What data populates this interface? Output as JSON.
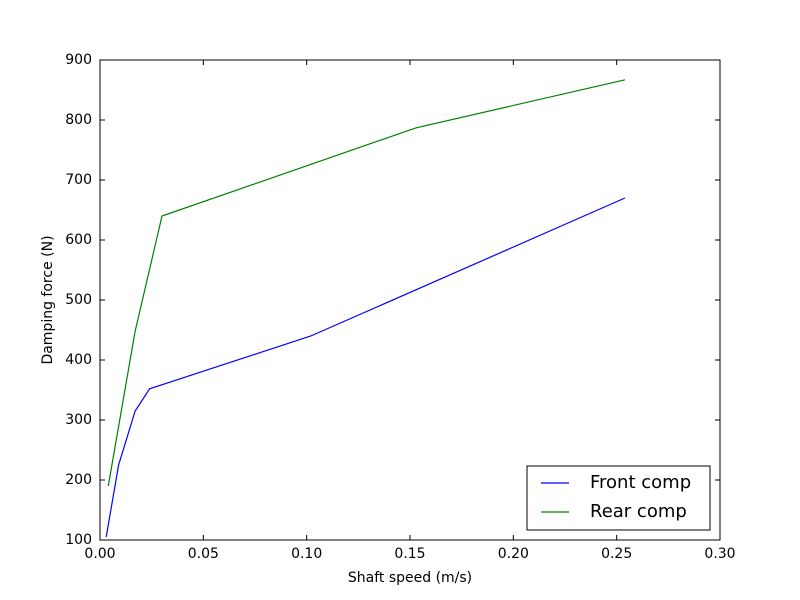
{
  "chart_data": {
    "type": "line",
    "xlabel": "Shaft speed (m/s)",
    "ylabel": "Damping force (N)",
    "series": [
      {
        "name": "Front comp",
        "color": "#0000ff",
        "x": [
          0.003,
          0.009,
          0.017,
          0.024,
          0.102,
          0.254
        ],
        "values": [
          105,
          225,
          315,
          352,
          440,
          670
        ]
      },
      {
        "name": "Rear comp",
        "color": "#008000",
        "x": [
          0.004,
          0.017,
          0.03,
          0.153,
          0.254
        ],
        "values": [
          190,
          448,
          640,
          787,
          867
        ]
      }
    ],
    "xlim": [
      0,
      0.3
    ],
    "xticks": [
      {
        "value": 0,
        "label": "0.00"
      },
      {
        "value": 0.05,
        "label": "0.05"
      },
      {
        "value": 0.1,
        "label": "0.10"
      },
      {
        "value": 0.15,
        "label": "0.15"
      },
      {
        "value": 0.2,
        "label": "0.20"
      },
      {
        "value": 0.25,
        "label": "0.25"
      },
      {
        "value": 0.3,
        "label": "0.30"
      }
    ],
    "ylim": [
      100,
      900
    ],
    "yticks": [
      100,
      200,
      300,
      400,
      500,
      600,
      700,
      800,
      900
    ],
    "grid": false,
    "legend": "lower right"
  }
}
